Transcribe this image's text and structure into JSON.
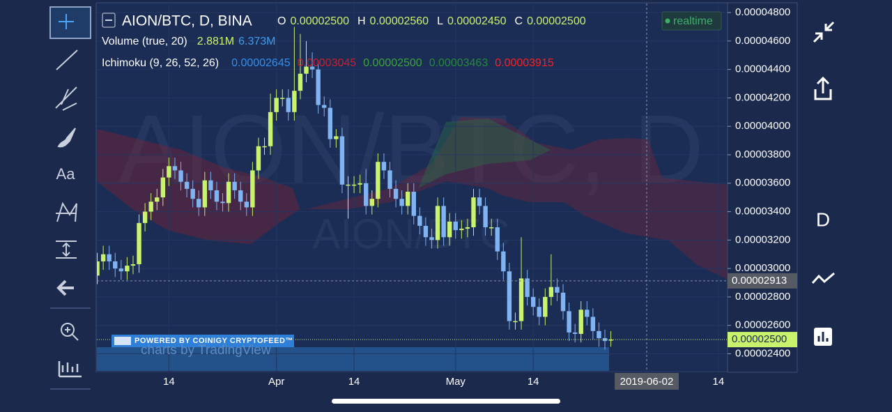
{
  "chart_data": {
    "type": "candlestick",
    "title": "AION/BTC, D, BINA",
    "watermark": "AION/BTC, D",
    "watermark_small": "AION/BTC",
    "categories": [
      null,
      null,
      null,
      null,
      null,
      null,
      null,
      null,
      null,
      null,
      null,
      null,
      null,
      "14",
      null,
      null,
      null,
      null,
      null,
      null,
      null,
      null,
      null,
      null,
      null,
      null,
      null,
      null,
      null,
      null,
      null,
      "Apr",
      null,
      null,
      null,
      null,
      null,
      null,
      null,
      null,
      null,
      null,
      null,
      null,
      "14",
      null,
      null,
      null,
      null,
      null,
      null,
      null,
      null,
      null,
      null,
      null,
      null,
      null,
      null,
      null,
      null,
      "May",
      null,
      null,
      null,
      null,
      null,
      null,
      null,
      null,
      null,
      null,
      null,
      null,
      "14",
      null,
      null,
      null,
      null,
      null,
      null,
      null,
      null,
      null,
      null,
      null,
      null,
      null,
      null,
      null,
      null,
      null,
      null,
      "2019-06-02",
      null,
      null,
      null,
      null,
      null,
      null,
      null,
      null,
      null,
      null,
      null,
      "14",
      null
    ],
    "open": [
      null,
      2.95e-05,
      3.05e-05,
      3.1e-05,
      3.05e-05,
      3e-05,
      2.98e-05,
      3.02e-05,
      3.03e-05,
      3.32e-05,
      3.4e-05,
      3.47e-05,
      3.5e-05,
      3.64e-05,
      3.72e-05,
      3.69e-05,
      3.61e-05,
      3.56e-05,
      3.49e-05,
      3.43e-05,
      3.62e-05,
      3.55e-05,
      3.47e-05,
      3.46e-05,
      3.61e-05,
      3.55e-05,
      3.47e-05,
      3.43e-05,
      3.69e-05,
      3.86e-05,
      3.86e-05,
      4.1e-05,
      4.2e-05,
      4.2e-05,
      4.1e-05,
      4.25e-05,
      4.37e-05,
      4.42e-05,
      4.4e-05,
      4.15e-05,
      4.13e-05,
      3.91e-05,
      3.93e-05,
      3.59e-05,
      3.59e-05,
      3.59e-05,
      3.6e-05,
      3.44e-05,
      3.49e-05,
      3.75e-05,
      3.69e-05,
      3.56e-05,
      3.49e-05,
      3.44e-05,
      3.54e-05,
      3.37e-05,
      3.3e-05,
      3.22e-05,
      3.2e-05,
      3.44e-05,
      3.22e-05,
      3.33e-05,
      3.27e-05,
      3.28e-05,
      3.29e-05,
      3.5e-05,
      3.44e-05,
      3.29e-05,
      3.29e-05,
      3.12e-05,
      2.98e-05,
      2.63e-05,
      2.63e-05,
      2.93e-05,
      2.8e-05,
      2.73e-05,
      2.66e-05,
      2.8e-05,
      2.87e-05,
      2.83e-05,
      2.7e-05,
      2.55e-05,
      2.54e-05,
      2.71e-05,
      2.66e-05,
      2.56e-05,
      2.51e-05,
      2.5e-05,
      null,
      null,
      null,
      null,
      null,
      null,
      null,
      null,
      null,
      null,
      null,
      null,
      null,
      null,
      null,
      null,
      null,
      null,
      null
    ],
    "high": [
      null,
      3.11e-05,
      3.16e-05,
      3.16e-05,
      3.11e-05,
      3.06e-05,
      3.08e-05,
      3.09e-05,
      3.38e-05,
      3.46e-05,
      3.53e-05,
      3.56e-05,
      3.7e-05,
      3.78e-05,
      3.78e-05,
      3.75e-05,
      3.67e-05,
      3.62e-05,
      3.55e-05,
      3.68e-05,
      3.68e-05,
      3.61e-05,
      3.53e-05,
      3.67e-05,
      3.67e-05,
      3.61e-05,
      3.53e-05,
      3.75e-05,
      3.92e-05,
      3.92e-05,
      4.23e-05,
      4.26e-05,
      4.26e-05,
      4.26e-05,
      4.7e-05,
      4.65e-05,
      4.6e-05,
      4.52e-05,
      4.46e-05,
      4.21e-05,
      4.19e-05,
      3.98e-05,
      3.99e-05,
      3.65e-05,
      3.65e-05,
      3.66e-05,
      3.7e-05,
      3.55e-05,
      3.81e-05,
      3.81e-05,
      3.75e-05,
      3.62e-05,
      3.55e-05,
      3.6e-05,
      3.6e-05,
      3.43e-05,
      3.36e-05,
      3.28e-05,
      3.5e-05,
      3.5e-05,
      3.39e-05,
      3.39e-05,
      3.34e-05,
      3.35e-05,
      3.56e-05,
      3.56e-05,
      3.5e-05,
      3.35e-05,
      3.35e-05,
      3.18e-05,
      3.04e-05,
      2.69e-05,
      3.22e-05,
      2.99e-05,
      2.86e-05,
      2.79e-05,
      2.86e-05,
      3.1e-05,
      2.93e-05,
      2.89e-05,
      2.76e-05,
      2.61e-05,
      2.77e-05,
      2.77e-05,
      2.72e-05,
      2.62e-05,
      2.57e-05,
      2.56e-05,
      null,
      null,
      null,
      null,
      null,
      null,
      null,
      null,
      null,
      null,
      null,
      null,
      null,
      null,
      null,
      null,
      null,
      null,
      null
    ],
    "low": [
      null,
      2.89e-05,
      2.99e-05,
      2.99e-05,
      2.94e-05,
      2.92e-05,
      2.92e-05,
      2.96e-05,
      2.97e-05,
      3.26e-05,
      3.34e-05,
      3.41e-05,
      3.44e-05,
      3.58e-05,
      3.63e-05,
      3.55e-05,
      3.5e-05,
      3.43e-05,
      3.37e-05,
      3.37e-05,
      3.49e-05,
      3.41e-05,
      3.4e-05,
      3.4e-05,
      3.49e-05,
      3.41e-05,
      3.37e-05,
      3.37e-05,
      3.63e-05,
      3.8e-05,
      3.8e-05,
      4.04e-05,
      4.14e-05,
      4.04e-05,
      4.04e-05,
      4.19e-05,
      4.31e-05,
      4.34e-05,
      4.09e-05,
      4.07e-05,
      3.85e-05,
      3.85e-05,
      3.53e-05,
      3.35e-05,
      3.53e-05,
      3.53e-05,
      3.38e-05,
      3.38e-05,
      3.43e-05,
      3.63e-05,
      3.5e-05,
      3.43e-05,
      3.38e-05,
      3.38e-05,
      3.31e-05,
      3.24e-05,
      3.16e-05,
      3.14e-05,
      3.14e-05,
      3.16e-05,
      3.16e-05,
      3.21e-05,
      3.21e-05,
      3.22e-05,
      3.23e-05,
      3.38e-05,
      3.23e-05,
      3.23e-05,
      3.06e-05,
      2.92e-05,
      2.57e-05,
      2.57e-05,
      2.57e-05,
      2.74e-05,
      2.67e-05,
      2.6e-05,
      2.6e-05,
      2.74e-05,
      2.77e-05,
      2.64e-05,
      2.49e-05,
      2.48e-05,
      2.48e-05,
      2.6e-05,
      2.5e-05,
      2.45e-05,
      2.43e-05,
      2.45e-05,
      null,
      null,
      null,
      null,
      null,
      null,
      null,
      null,
      null,
      null,
      null,
      null,
      null,
      null,
      null,
      null,
      null,
      null,
      null
    ],
    "close": [
      null,
      3.05e-05,
      3.1e-05,
      3.05e-05,
      3e-05,
      2.98e-05,
      3.02e-05,
      3.03e-05,
      3.32e-05,
      3.4e-05,
      3.47e-05,
      3.5e-05,
      3.64e-05,
      3.72e-05,
      3.69e-05,
      3.61e-05,
      3.56e-05,
      3.49e-05,
      3.43e-05,
      3.62e-05,
      3.55e-05,
      3.47e-05,
      3.46e-05,
      3.61e-05,
      3.55e-05,
      3.47e-05,
      3.43e-05,
      3.69e-05,
      3.86e-05,
      3.86e-05,
      4.1e-05,
      4.2e-05,
      4.2e-05,
      4.1e-05,
      4.25e-05,
      4.37e-05,
      4.42e-05,
      4.4e-05,
      4.15e-05,
      4.13e-05,
      3.91e-05,
      3.93e-05,
      3.59e-05,
      3.59e-05,
      3.59e-05,
      3.6e-05,
      3.44e-05,
      3.49e-05,
      3.75e-05,
      3.69e-05,
      3.56e-05,
      3.49e-05,
      3.44e-05,
      3.54e-05,
      3.37e-05,
      3.3e-05,
      3.22e-05,
      3.2e-05,
      3.44e-05,
      3.22e-05,
      3.33e-05,
      3.27e-05,
      3.28e-05,
      3.29e-05,
      3.5e-05,
      3.44e-05,
      3.29e-05,
      3.29e-05,
      3.12e-05,
      2.98e-05,
      2.63e-05,
      2.63e-05,
      2.93e-05,
      2.8e-05,
      2.73e-05,
      2.66e-05,
      2.8e-05,
      2.87e-05,
      2.83e-05,
      2.7e-05,
      2.55e-05,
      2.54e-05,
      2.71e-05,
      2.66e-05,
      2.56e-05,
      2.51e-05,
      2.49e-05,
      2.5e-05,
      null,
      null,
      null,
      null,
      null,
      null,
      null,
      null,
      null,
      null,
      null,
      null,
      null,
      null,
      null,
      null,
      null,
      null,
      null
    ],
    "up_color": "#c9f26d",
    "down_color": "#7fb3f2",
    "ylim": [
      2.275e-05,
      4.864e-05
    ],
    "yticks": [
      {
        "value": 2.4e-05,
        "label": "0.00002400"
      },
      {
        "value": 2.6e-05,
        "label": "0.00002600"
      },
      {
        "value": 2.8e-05,
        "label": "0.00002800"
      },
      {
        "value": 3e-05,
        "label": "0.00003000"
      },
      {
        "value": 3.2e-05,
        "label": "0.00003200"
      },
      {
        "value": 3.4e-05,
        "label": "0.00003400"
      },
      {
        "value": 3.6e-05,
        "label": "0.00003600"
      },
      {
        "value": 3.8e-05,
        "label": "0.00003800"
      },
      {
        "value": 4e-05,
        "label": "0.00004000"
      },
      {
        "value": 4.2e-05,
        "label": "0.00004200"
      },
      {
        "value": 4.4e-05,
        "label": "0.00004400"
      },
      {
        "value": 4.6e-05,
        "label": "0.00004600"
      },
      {
        "value": 4.8e-05,
        "label": "0.00004800"
      }
    ],
    "grid": true,
    "legend": {
      "ohlc": [
        {
          "label": "O",
          "value": "0.00002500"
        },
        {
          "label": "H",
          "value": "0.00002560"
        },
        {
          "label": "L",
          "value": "0.00002450"
        },
        {
          "label": "C",
          "value": "0.00002500"
        }
      ],
      "volume": {
        "name": "Volume (true, 20)",
        "values": [
          {
            "text": "2.881M",
            "color": "#cdf36b"
          },
          {
            "text": "6.373M",
            "color": "#3d9cf0"
          }
        ]
      },
      "ichimoku": {
        "name": "Ichimoku (9, 26, 52, 26)",
        "values": [
          {
            "text": "0.00002645",
            "color": "#2f8ff0"
          },
          {
            "text": "0.00003045",
            "color": "#c8202e"
          },
          {
            "text": "0.00002500",
            "color": "#3aa33a"
          },
          {
            "text": "0.00003463",
            "color": "#238a3a"
          },
          {
            "text": "0.00003915",
            "color": "#ff1e1e"
          }
        ]
      }
    },
    "realtime": "realtime",
    "crosshair": {
      "x": "2019-06-02",
      "y": {
        "value": 2.913e-05,
        "label": "0.00002913"
      }
    },
    "last_price": {
      "value": 2.5e-05,
      "label": "0.00002500"
    }
  },
  "branding": {
    "powered": "POWERED BY COINIGY CRYPTOFEED™",
    "tradingview": "charts by TradingView"
  },
  "toolbar": {
    "text_tool": "Aa"
  },
  "side_panel": {
    "interval": "D"
  }
}
